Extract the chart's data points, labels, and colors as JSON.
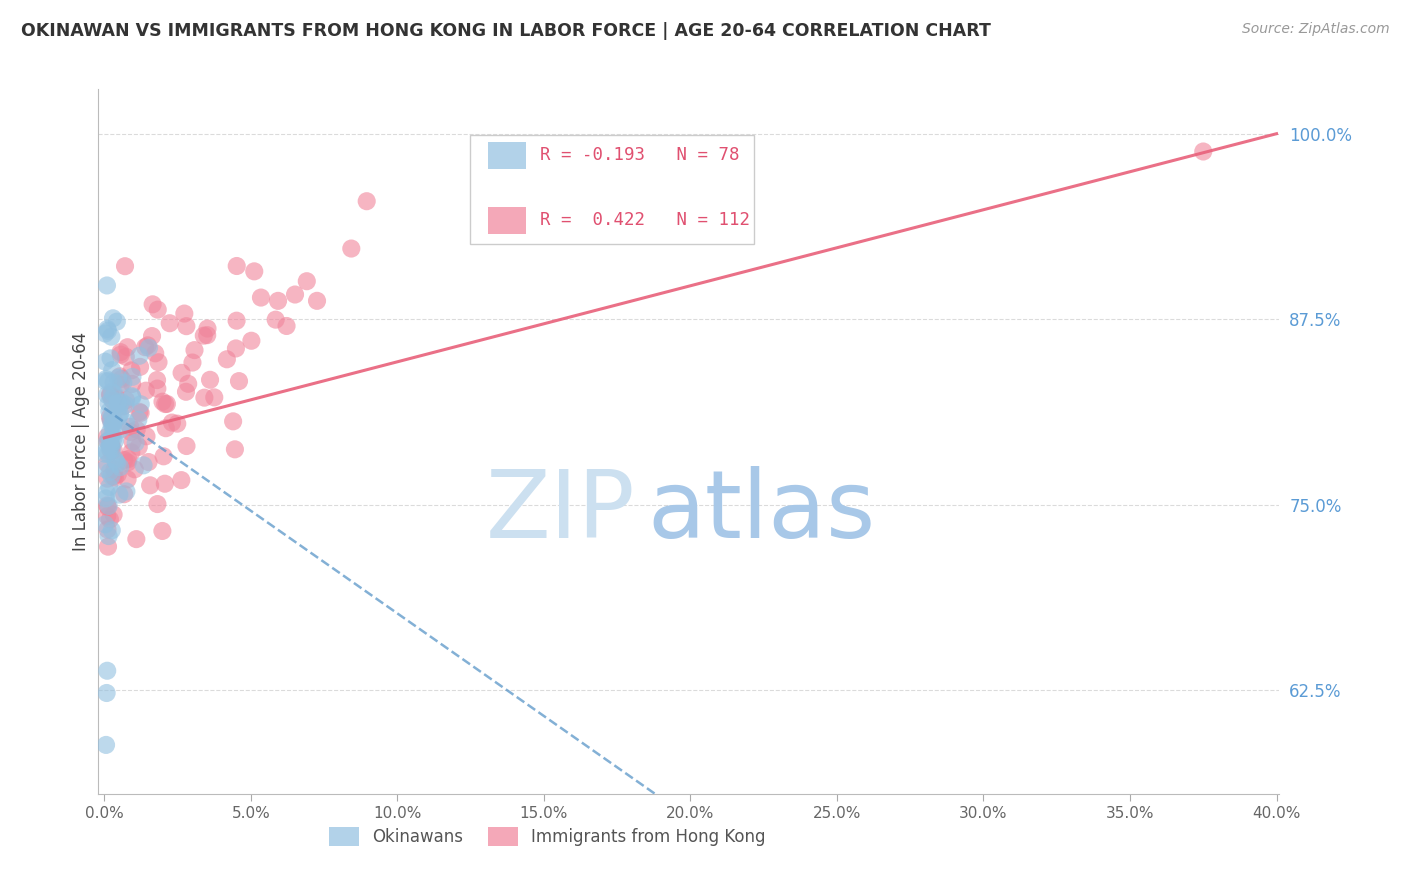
{
  "title": "OKINAWAN VS IMMIGRANTS FROM HONG KONG IN LABOR FORCE | AGE 20-64 CORRELATION CHART",
  "source": "Source: ZipAtlas.com",
  "ylabel": "In Labor Force | Age 20-64",
  "legend_blue_r": "-0.193",
  "legend_blue_n": "78",
  "legend_pink_r": "0.422",
  "legend_pink_n": "112",
  "xlim": [
    -0.002,
    0.401
  ],
  "ylim": [
    0.555,
    1.03
  ],
  "xticks": [
    0.0,
    0.05,
    0.1,
    0.15,
    0.2,
    0.25,
    0.3,
    0.35,
    0.4
  ],
  "yticks_right": [
    0.625,
    0.75,
    0.875,
    1.0
  ],
  "blue_color": "#92c0e0",
  "pink_color": "#f0849a",
  "blue_line_color": "#5a96c8",
  "pink_line_color": "#e8607a",
  "grid_color": "#cccccc",
  "right_label_color": "#5b9bd5",
  "title_color": "#333333",
  "background_color": "#ffffff",
  "watermark_zip_color": "#cce0f0",
  "watermark_atlas_color": "#a8c8e8",
  "legend_border_color": "#dddddd",
  "bottom_legend_label1": "Okinawans",
  "bottom_legend_label2": "Immigrants from Hong Kong"
}
